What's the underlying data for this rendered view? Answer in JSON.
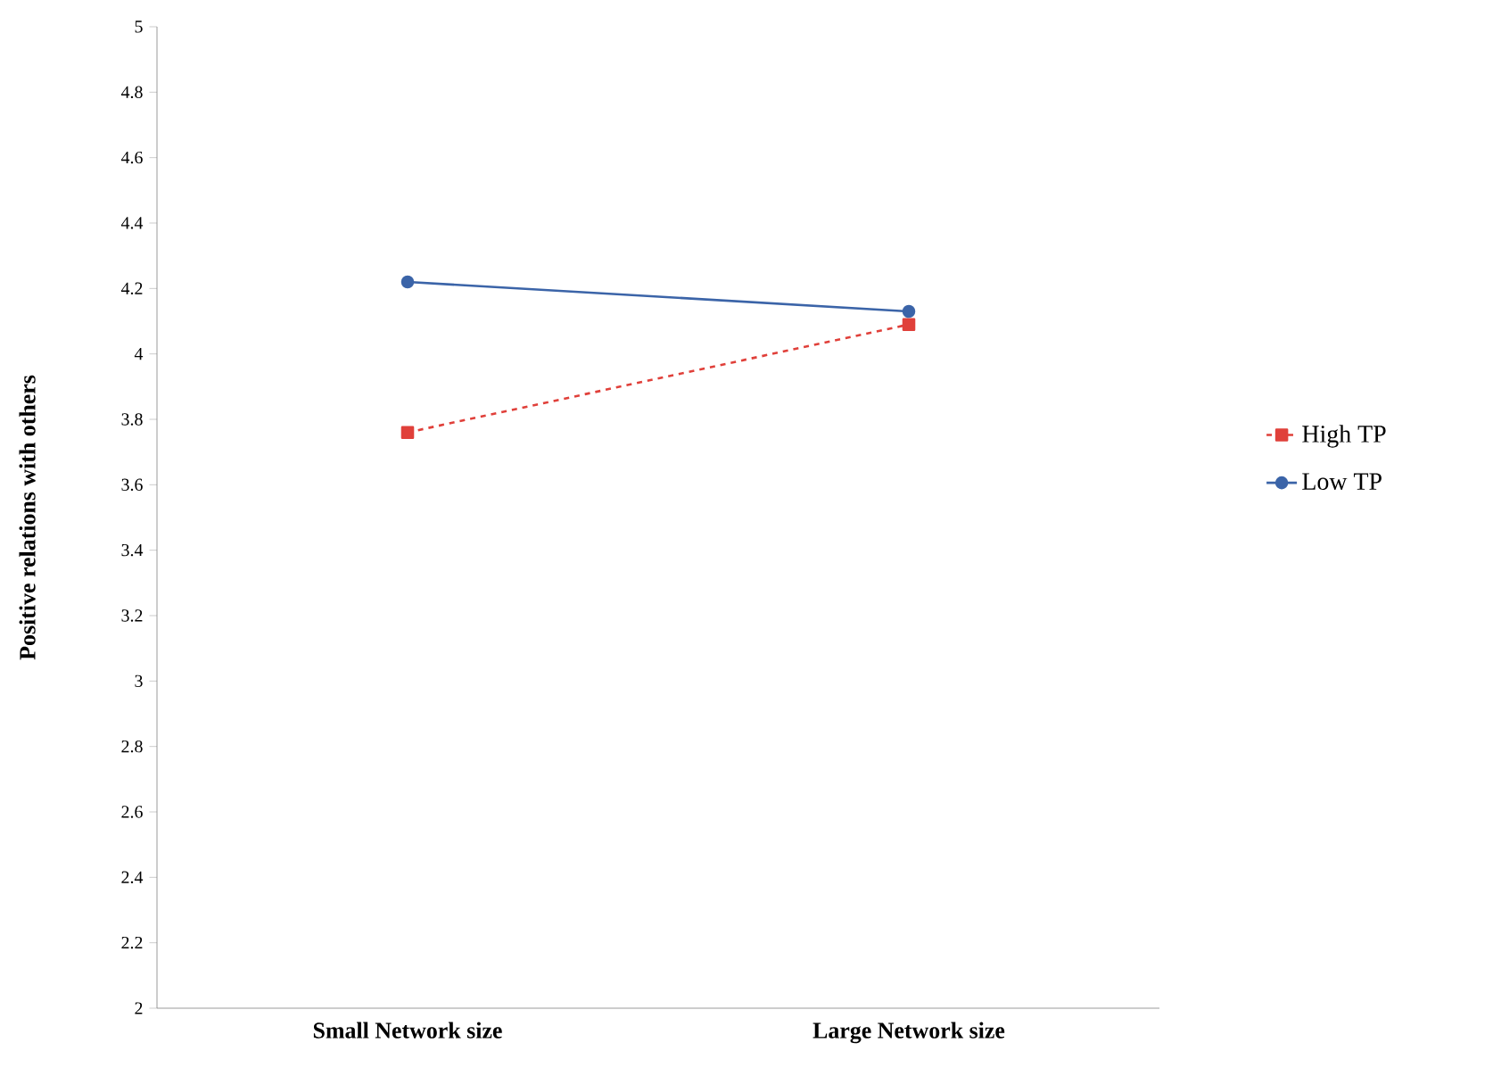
{
  "chart_data": {
    "type": "line",
    "ylabel": "Positive relations with others",
    "categories": [
      "Small Network size",
      "Large Network size"
    ],
    "series": [
      {
        "name": "High TP",
        "color": "#e0403a",
        "values": [
          3.76,
          4.09
        ],
        "marker": "square",
        "line_style": "dashed"
      },
      {
        "name": "Low TP",
        "color": "#3b64a8",
        "values": [
          4.22,
          4.13
        ],
        "marker": "circle",
        "line_style": "solid"
      }
    ],
    "ylim": [
      2,
      5
    ],
    "yticks": [
      2,
      2.2,
      2.4,
      2.6,
      2.8,
      3,
      3.2,
      3.4,
      3.6,
      3.8,
      4,
      4.2,
      4.4,
      4.6,
      4.8,
      5
    ],
    "grid": false,
    "legend": "right"
  }
}
